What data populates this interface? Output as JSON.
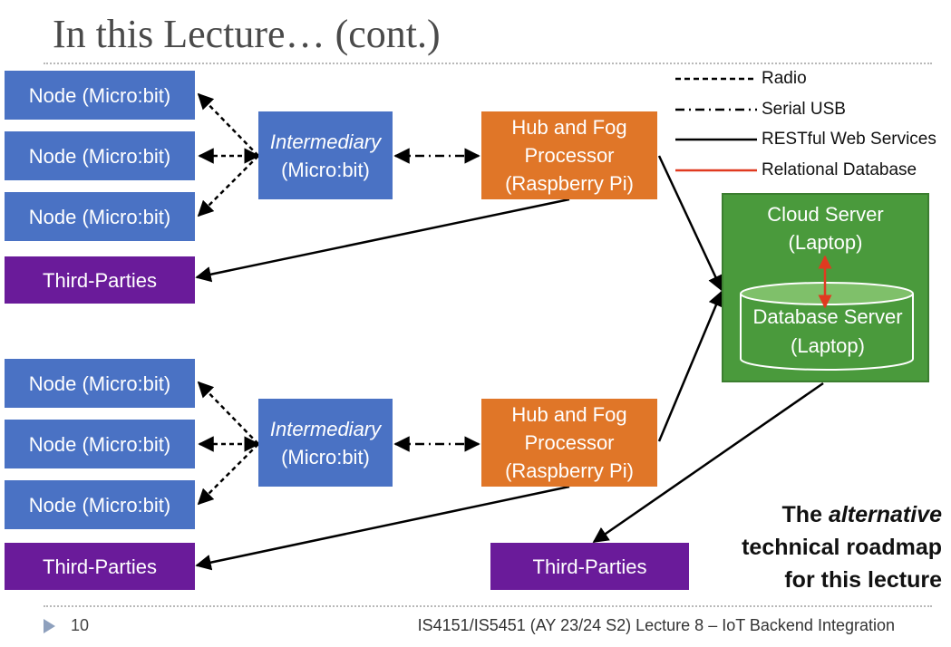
{
  "slide": {
    "title": "In this Lecture… (cont.)",
    "page_number": "10",
    "footer": "IS4151/IS5451 (AY 23/24 S2) Lecture 8 – IoT Backend Integration"
  },
  "legend": {
    "radio": "Radio",
    "serial": "Serial USB",
    "rest": "RESTful Web Services",
    "db": "Relational Database"
  },
  "top_group": {
    "nodes": [
      "Node (Micro:bit)",
      "Node (Micro:bit)",
      "Node (Micro:bit)"
    ],
    "third_parties": "Third-Parties",
    "intermediary": {
      "line1": "Intermediary",
      "line2": "(Micro:bit)"
    },
    "hub": {
      "line1": "Hub and Fog",
      "line2": "Processor",
      "line3": "(Raspberry Pi)"
    }
  },
  "bottom_group": {
    "nodes": [
      "Node (Micro:bit)",
      "Node (Micro:bit)",
      "Node (Micro:bit)"
    ],
    "third_parties": "Third-Parties",
    "intermediary": {
      "line1": "Intermediary",
      "line2": "(Micro:bit)"
    },
    "hub": {
      "line1": "Hub and Fog",
      "line2": "Processor",
      "line3": "(Raspberry Pi)"
    }
  },
  "cloud": {
    "line1": "Cloud Server",
    "line2": "(Laptop)",
    "db_line1": "Database Server",
    "db_line2": "(Laptop)",
    "third_parties": "Third-Parties"
  },
  "roadmap": {
    "prefix": "The ",
    "emph": "alternative",
    "line2": "technical roadmap",
    "line3": "for this lecture"
  },
  "colors": {
    "node": "#4a72c4",
    "third": "#6a1b9a",
    "fog": "#e07628",
    "cloud": "#4a9a3c",
    "db_arrow": "#e03a20"
  }
}
